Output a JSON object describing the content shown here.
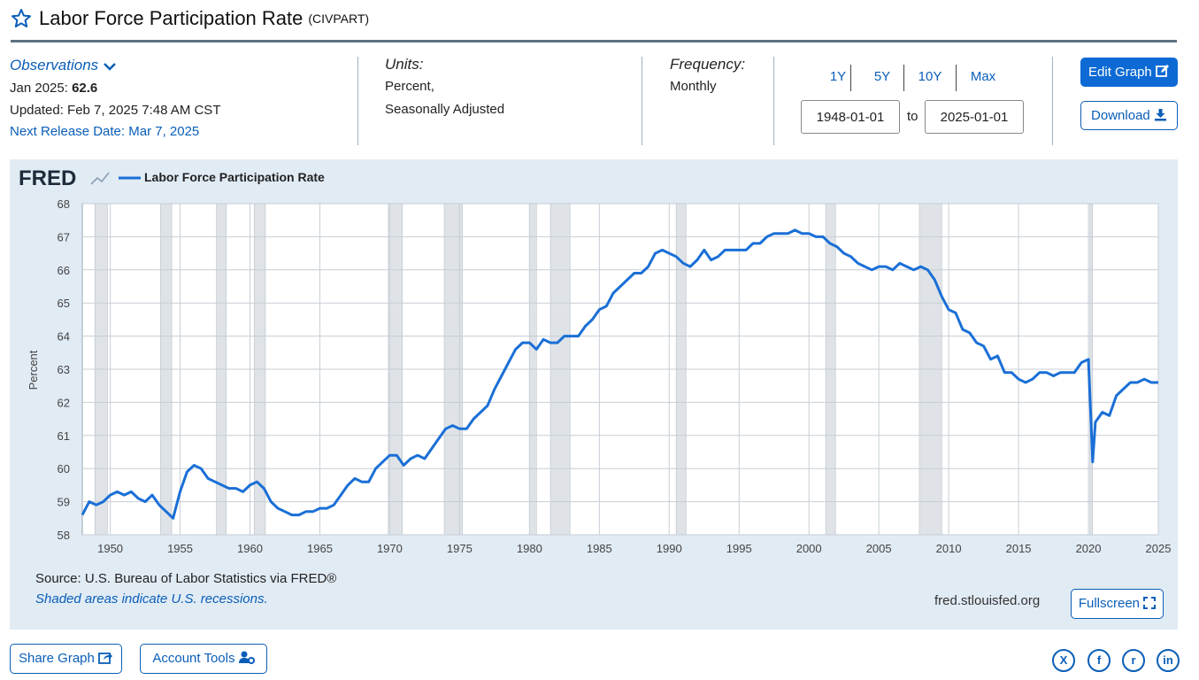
{
  "header": {
    "title": "Labor Force Participation Rate",
    "series_id": "(CIVPART)"
  },
  "observations": {
    "label": "Observations",
    "latest_prefix": "Jan 2025:",
    "latest_value": "62.6",
    "updated": "Updated: Feb 7, 2025 7:48 AM CST",
    "next_release": "Next Release Date: Mar 7, 2025"
  },
  "units": {
    "label": "Units:",
    "line1": "Percent,",
    "line2": "Seasonally Adjusted"
  },
  "frequency": {
    "label": "Frequency:",
    "value": "Monthly"
  },
  "range": {
    "buttons": [
      "1Y",
      "5Y",
      "10Y",
      "Max"
    ],
    "start": "1948-01-01",
    "to": "to",
    "end": "2025-01-01"
  },
  "actions": {
    "edit": "Edit Graph",
    "download": "Download"
  },
  "graph": {
    "logo": "FRED",
    "legend": "Labor Force Participation Rate",
    "source": "Source: U.S. Bureau of Labor Statistics via FRED®",
    "shaded_note": "Shaded areas indicate U.S. recessions.",
    "site": "fred.stlouisfed.org",
    "fullscreen": "Fullscreen"
  },
  "footer": {
    "share": "Share Graph",
    "account": "Account Tools"
  },
  "colors": {
    "accent": "#0a5eb8",
    "line": "#1a6fd6",
    "panel": "#e1ebf4",
    "recession": "#dfe3e7"
  },
  "chart_data": {
    "type": "line",
    "title": "Labor Force Participation Rate",
    "xlabel": "",
    "ylabel": "Percent",
    "xlim": [
      1948.0,
      2025.0
    ],
    "ylim": [
      58,
      68
    ],
    "x_ticks": [
      1950,
      1955,
      1960,
      1965,
      1970,
      1975,
      1980,
      1985,
      1990,
      1995,
      2000,
      2005,
      2010,
      2015,
      2020,
      2025
    ],
    "y_ticks": [
      58,
      59,
      60,
      61,
      62,
      63,
      64,
      65,
      66,
      67,
      68
    ],
    "recessions": [
      [
        1948.9,
        1949.8
      ],
      [
        1953.6,
        1954.4
      ],
      [
        1957.6,
        1958.3
      ],
      [
        1960.3,
        1961.1
      ],
      [
        1969.9,
        1970.9
      ],
      [
        1973.9,
        1975.2
      ],
      [
        1980.0,
        1980.5
      ],
      [
        1981.5,
        1982.9
      ],
      [
        1990.5,
        1991.2
      ],
      [
        2001.2,
        2001.9
      ],
      [
        2007.9,
        2009.5
      ],
      [
        2020.1,
        2020.3
      ]
    ],
    "series": [
      {
        "name": "Labor Force Participation Rate",
        "x": [
          1948.0,
          1948.5,
          1949.0,
          1949.5,
          1950.0,
          1950.5,
          1951.0,
          1951.5,
          1952.0,
          1952.5,
          1953.0,
          1953.5,
          1954.0,
          1954.5,
          1955.0,
          1955.5,
          1956.0,
          1956.5,
          1957.0,
          1957.5,
          1958.0,
          1958.5,
          1959.0,
          1959.5,
          1960.0,
          1960.5,
          1961.0,
          1961.5,
          1962.0,
          1962.5,
          1963.0,
          1963.5,
          1964.0,
          1964.5,
          1965.0,
          1965.5,
          1966.0,
          1966.5,
          1967.0,
          1967.5,
          1968.0,
          1968.5,
          1969.0,
          1969.5,
          1970.0,
          1970.5,
          1971.0,
          1971.5,
          1972.0,
          1972.5,
          1973.0,
          1973.5,
          1974.0,
          1974.5,
          1975.0,
          1975.5,
          1976.0,
          1976.5,
          1977.0,
          1977.5,
          1978.0,
          1978.5,
          1979.0,
          1979.5,
          1980.0,
          1980.5,
          1981.0,
          1981.5,
          1982.0,
          1982.5,
          1983.0,
          1983.5,
          1984.0,
          1984.5,
          1985.0,
          1985.5,
          1986.0,
          1986.5,
          1987.0,
          1987.5,
          1988.0,
          1988.5,
          1989.0,
          1989.5,
          1990.0,
          1990.5,
          1991.0,
          1991.5,
          1992.0,
          1992.5,
          1993.0,
          1993.5,
          1994.0,
          1994.5,
          1995.0,
          1995.5,
          1996.0,
          1996.5,
          1997.0,
          1997.5,
          1998.0,
          1998.5,
          1999.0,
          1999.5,
          2000.0,
          2000.5,
          2001.0,
          2001.5,
          2002.0,
          2002.5,
          2003.0,
          2003.5,
          2004.0,
          2004.5,
          2005.0,
          2005.5,
          2006.0,
          2006.5,
          2007.0,
          2007.5,
          2008.0,
          2008.5,
          2009.0,
          2009.5,
          2010.0,
          2010.5,
          2011.0,
          2011.5,
          2012.0,
          2012.5,
          2013.0,
          2013.5,
          2014.0,
          2014.5,
          2015.0,
          2015.5,
          2016.0,
          2016.5,
          2017.0,
          2017.5,
          2018.0,
          2018.5,
          2019.0,
          2019.5,
          2020.0,
          2020.1,
          2020.3,
          2020.5,
          2021.0,
          2021.5,
          2022.0,
          2022.5,
          2023.0,
          2023.5,
          2024.0,
          2024.5,
          2025.0
        ],
        "values": [
          58.6,
          59.0,
          58.9,
          59.0,
          59.2,
          59.3,
          59.2,
          59.3,
          59.1,
          59.0,
          59.2,
          58.9,
          58.7,
          58.5,
          59.3,
          59.9,
          60.1,
          60.0,
          59.7,
          59.6,
          59.5,
          59.4,
          59.4,
          59.3,
          59.5,
          59.6,
          59.4,
          59.0,
          58.8,
          58.7,
          58.6,
          58.6,
          58.7,
          58.7,
          58.8,
          58.8,
          58.9,
          59.2,
          59.5,
          59.7,
          59.6,
          59.6,
          60.0,
          60.2,
          60.4,
          60.4,
          60.1,
          60.3,
          60.4,
          60.3,
          60.6,
          60.9,
          61.2,
          61.3,
          61.2,
          61.2,
          61.5,
          61.7,
          61.9,
          62.4,
          62.8,
          63.2,
          63.6,
          63.8,
          63.8,
          63.6,
          63.9,
          63.8,
          63.8,
          64.0,
          64.0,
          64.0,
          64.3,
          64.5,
          64.8,
          64.9,
          65.3,
          65.5,
          65.7,
          65.9,
          65.9,
          66.1,
          66.5,
          66.6,
          66.5,
          66.4,
          66.2,
          66.1,
          66.3,
          66.6,
          66.3,
          66.4,
          66.6,
          66.6,
          66.6,
          66.6,
          66.8,
          66.8,
          67.0,
          67.1,
          67.1,
          67.1,
          67.2,
          67.1,
          67.1,
          67.0,
          67.0,
          66.8,
          66.7,
          66.5,
          66.4,
          66.2,
          66.1,
          66.0,
          66.1,
          66.1,
          66.0,
          66.2,
          66.1,
          66.0,
          66.1,
          66.0,
          65.7,
          65.2,
          64.8,
          64.7,
          64.2,
          64.1,
          63.8,
          63.7,
          63.3,
          63.4,
          62.9,
          62.9,
          62.7,
          62.6,
          62.7,
          62.9,
          62.9,
          62.8,
          62.9,
          62.9,
          62.9,
          63.2,
          63.3,
          62.3,
          60.2,
          61.4,
          61.7,
          61.6,
          62.2,
          62.4,
          62.6,
          62.6,
          62.7,
          62.6,
          62.6
        ]
      }
    ]
  }
}
